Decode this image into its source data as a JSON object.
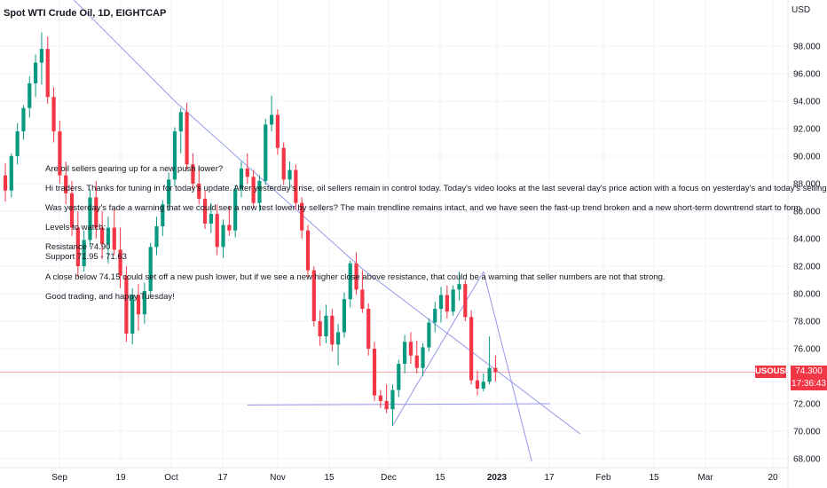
{
  "header": {
    "title": "Spot WTI Crude Oil, 1D, EIGHTCAP",
    "currency": "USD"
  },
  "price": {
    "symbol": "USOUSD",
    "last": "74.300",
    "countdown": "17:36:43"
  },
  "annotation": [
    "Are oil sellers gearing up for a new push lower?",
    "Hi traders. Thanks for tuning in for today's update. After yesterday's rise, oil sellers remain in control today. Today's video looks at the last several day's price action with a focus on yesterday's and today's selling.",
    "Was yesterday's fade a warning that we could see a new test lower by sellers? The main trendline remains intact, and we have seen the fast-up trend broken and a new short-term downtrend start to form.",
    "Levels to watch:",
    "Resistance 74.90",
    "Support 71.95 - 71.63",
    "A close below 74.15 could set off a new push lower, but if we see a new higher close above resistance, that could be a warning that seller numbers are not that strong.",
    "Good trading, and happy Tuesday!"
  ],
  "chart_data": {
    "type": "candlestick",
    "title": "Spot WTI Crude Oil, 1D, EIGHTCAP",
    "y_axis": {
      "position": "right",
      "unit": "USD",
      "ylim": [
        67.5,
        100.5
      ],
      "ticks": [
        "98.000",
        "96.000",
        "94.000",
        "92.000",
        "90.000",
        "88.000",
        "86.000",
        "84.000",
        "82.000",
        "80.000",
        "78.000",
        "76.000",
        "74.000",
        "72.000",
        "70.000",
        "68.000"
      ]
    },
    "x_axis": {
      "ticks": [
        {
          "label": "Sep",
          "bold": false
        },
        {
          "label": "19",
          "bold": false
        },
        {
          "label": "Oct",
          "bold": false
        },
        {
          "label": "17",
          "bold": false
        },
        {
          "label": "Nov",
          "bold": false
        },
        {
          "label": "15",
          "bold": false
        },
        {
          "label": "Dec",
          "bold": false
        },
        {
          "label": "15",
          "bold": false
        },
        {
          "label": "2023",
          "bold": true
        },
        {
          "label": "17",
          "bold": false
        },
        {
          "label": "Feb",
          "bold": false
        },
        {
          "label": "15",
          "bold": false
        },
        {
          "label": "Mar",
          "bold": false
        },
        {
          "label": "20",
          "bold": false
        }
      ]
    },
    "colors": {
      "up": "#089981",
      "down": "#f23645",
      "trendline": "#9598e8",
      "price_line": "#f23645"
    },
    "last_price": 74.3,
    "candles": [
      [
        88.6,
        89.5,
        86.7,
        87.5
      ],
      [
        87.5,
        90.2,
        87.0,
        90.0
      ],
      [
        90.0,
        92.4,
        89.4,
        91.8
      ],
      [
        91.8,
        93.7,
        91.2,
        93.5
      ],
      [
        93.5,
        95.8,
        92.8,
        95.3
      ],
      [
        95.3,
        97.4,
        94.3,
        96.8
      ],
      [
        96.8,
        99.0,
        95.2,
        97.8
      ],
      [
        97.8,
        98.7,
        93.8,
        94.3
      ],
      [
        94.3,
        95.0,
        91.0,
        91.8
      ],
      [
        91.8,
        92.6,
        88.0,
        88.6
      ],
      [
        88.6,
        89.6,
        86.5,
        87.3
      ],
      [
        87.3,
        88.2,
        84.2,
        84.8
      ],
      [
        84.8,
        86.0,
        81.2,
        82.0
      ],
      [
        82.0,
        84.6,
        81.6,
        83.9
      ],
      [
        83.9,
        87.6,
        83.4,
        87.0
      ],
      [
        87.0,
        88.2,
        84.0,
        84.8
      ],
      [
        84.8,
        86.0,
        82.5,
        83.6
      ],
      [
        83.6,
        85.6,
        82.2,
        84.8
      ],
      [
        84.8,
        86.1,
        82.8,
        83.2
      ],
      [
        83.2,
        84.8,
        80.4,
        81.3
      ],
      [
        81.3,
        82.0,
        76.5,
        77.1
      ],
      [
        77.1,
        80.4,
        76.3,
        79.9
      ],
      [
        79.9,
        80.7,
        77.3,
        78.5
      ],
      [
        78.5,
        80.8,
        77.8,
        80.2
      ],
      [
        80.2,
        83.7,
        79.8,
        83.4
      ],
      [
        83.4,
        85.6,
        82.8,
        84.9
      ],
      [
        84.9,
        86.8,
        84.2,
        86.5
      ],
      [
        86.5,
        88.8,
        86.0,
        88.3
      ],
      [
        88.3,
        92.1,
        87.8,
        91.8
      ],
      [
        91.8,
        93.5,
        90.2,
        93.2
      ],
      [
        93.2,
        93.9,
        89.0,
        89.4
      ],
      [
        89.4,
        90.2,
        87.6,
        88.0
      ],
      [
        88.0,
        89.2,
        86.5,
        86.9
      ],
      [
        86.9,
        87.5,
        84.7,
        85.1
      ],
      [
        85.1,
        86.6,
        84.4,
        85.8
      ],
      [
        85.8,
        86.5,
        82.8,
        83.4
      ],
      [
        83.4,
        85.4,
        82.6,
        85.0
      ],
      [
        85.0,
        86.4,
        84.2,
        84.6
      ],
      [
        84.6,
        87.9,
        84.1,
        87.6
      ],
      [
        87.6,
        89.6,
        87.0,
        89.1
      ],
      [
        89.1,
        90.2,
        88.0,
        88.5
      ],
      [
        88.5,
        89.0,
        86.2,
        86.6
      ],
      [
        86.6,
        88.6,
        86.0,
        88.2
      ],
      [
        88.2,
        92.7,
        87.9,
        92.3
      ],
      [
        92.3,
        94.4,
        91.8,
        93.0
      ],
      [
        93.0,
        93.4,
        90.1,
        90.6
      ],
      [
        90.6,
        91.0,
        87.9,
        88.3
      ],
      [
        88.3,
        89.6,
        87.6,
        89.0
      ],
      [
        89.0,
        89.4,
        86.1,
        86.6
      ],
      [
        86.6,
        87.0,
        84.0,
        84.6
      ],
      [
        84.6,
        85.0,
        81.2,
        81.7
      ],
      [
        81.7,
        82.0,
        77.6,
        78.0
      ],
      [
        78.0,
        78.8,
        76.2,
        76.9
      ],
      [
        76.9,
        79.2,
        76.4,
        78.4
      ],
      [
        78.4,
        78.9,
        75.8,
        76.3
      ],
      [
        76.3,
        77.8,
        74.8,
        77.2
      ],
      [
        77.2,
        80.1,
        76.8,
        79.6
      ],
      [
        79.6,
        82.4,
        79.0,
        82.2
      ],
      [
        82.2,
        83.0,
        79.9,
        80.3
      ],
      [
        80.3,
        81.7,
        78.6,
        78.9
      ],
      [
        78.9,
        79.3,
        75.5,
        76.0
      ],
      [
        76.0,
        76.5,
        72.2,
        72.6
      ],
      [
        72.6,
        73.0,
        71.7,
        72.2
      ],
      [
        72.2,
        73.4,
        71.3,
        71.6
      ],
      [
        71.6,
        73.4,
        70.4,
        73.0
      ],
      [
        73.0,
        75.2,
        72.5,
        74.9
      ],
      [
        74.9,
        77.0,
        74.2,
        76.5
      ],
      [
        76.5,
        77.2,
        74.9,
        75.5
      ],
      [
        75.5,
        76.6,
        74.2,
        74.6
      ],
      [
        74.6,
        76.4,
        74.0,
        76.1
      ],
      [
        76.1,
        78.2,
        75.8,
        77.9
      ],
      [
        77.9,
        79.4,
        77.2,
        78.9
      ],
      [
        78.9,
        80.5,
        77.9,
        79.9
      ],
      [
        79.9,
        80.6,
        78.2,
        78.7
      ],
      [
        78.7,
        80.6,
        78.4,
        80.3
      ],
      [
        80.3,
        81.6,
        79.5,
        80.7
      ],
      [
        80.7,
        81.0,
        78.0,
        78.3
      ],
      [
        78.3,
        78.8,
        73.4,
        73.7
      ],
      [
        73.7,
        74.4,
        72.6,
        73.1
      ],
      [
        73.1,
        74.2,
        72.9,
        73.6
      ],
      [
        73.6,
        76.9,
        73.4,
        74.6
      ],
      [
        74.6,
        75.5,
        73.6,
        74.3
      ]
    ],
    "trendlines": [
      {
        "name": "main-downtrend",
        "points": [
          [
            11,
            101.5
          ],
          [
            28,
            94.0
          ],
          [
            59,
            81.8
          ],
          [
            95,
            69.8
          ]
        ]
      },
      {
        "name": "fast-uptrend",
        "points": [
          [
            64,
            70.4
          ],
          [
            79,
            81.6
          ]
        ]
      },
      {
        "name": "short-term-downtrend",
        "points": [
          [
            79,
            81.6
          ],
          [
            87,
            67.8
          ]
        ]
      },
      {
        "name": "support-line",
        "points": [
          [
            40,
            71.9
          ],
          [
            90,
            72.0
          ]
        ]
      }
    ]
  }
}
